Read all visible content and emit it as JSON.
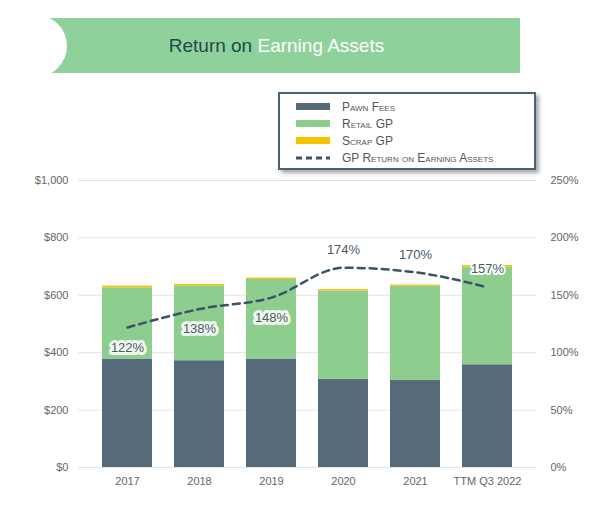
{
  "chart_data": {
    "type": "bar",
    "title": "Return on Earning Assets",
    "categories": [
      "2017",
      "2018",
      "2019",
      "2020",
      "2021",
      "TTM Q3 2022"
    ],
    "stacked": true,
    "series": [
      {
        "name": "Pawn Fees",
        "color": "#566b7a",
        "values": [
          378,
          372,
          378,
          308,
          303,
          358
        ]
      },
      {
        "name": "Retail GP",
        "color": "#8dce8f",
        "values": [
          248,
          261,
          277,
          307,
          329,
          340
        ]
      },
      {
        "name": "Scrap GP",
        "color": "#f5c400",
        "values": [
          6,
          5,
          5,
          5,
          4,
          6
        ]
      },
      {
        "name": "GP Return on Earning Assets",
        "type": "line",
        "axis": "y2",
        "color": "#3d5468",
        "line_style": "dashed",
        "data_labels": true,
        "values": [
          122,
          138,
          148,
          174,
          170,
          157
        ],
        "value_labels": [
          "122%",
          "138%",
          "148%",
          "174%",
          "170%",
          "157%"
        ]
      }
    ],
    "ylim": [
      0,
      1000
    ],
    "yticks": [
      {
        "value": 0,
        "label": "$0"
      },
      {
        "value": 200,
        "label": "$200"
      },
      {
        "value": 400,
        "label": "$400"
      },
      {
        "value": 600,
        "label": "$600"
      },
      {
        "value": 800,
        "label": "$800"
      },
      {
        "value": 1000,
        "label": "$1,000"
      }
    ],
    "y2lim": [
      0,
      250
    ],
    "y2ticks": [
      {
        "value": 0,
        "label": "0%"
      },
      {
        "value": 50,
        "label": "50%"
      },
      {
        "value": 100,
        "label": "100%"
      },
      {
        "value": 150,
        "label": "150%"
      },
      {
        "value": 200,
        "label": "200%"
      },
      {
        "value": 250,
        "label": "250%"
      }
    ],
    "grid": true,
    "legend": "top right"
  }
}
